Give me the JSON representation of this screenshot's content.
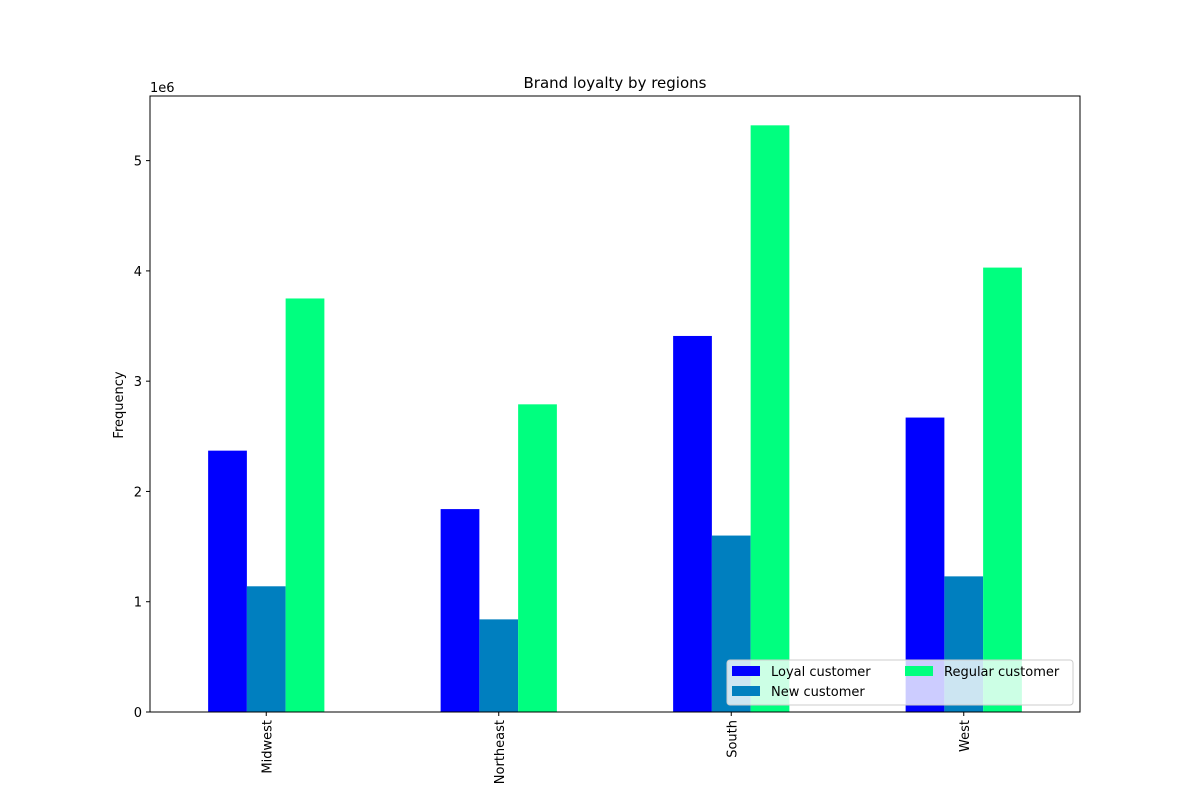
{
  "chart_data": {
    "type": "bar",
    "title": "Brand loyalty by regions",
    "xlabel": "",
    "ylabel": "Frequency",
    "y_offset_label": "1e6",
    "categories": [
      "Midwest",
      "Northeast",
      "South",
      "West"
    ],
    "series": [
      {
        "name": "Loyal customer",
        "color": "#0000ff",
        "values": [
          2370000,
          1840000,
          3410000,
          2670000
        ]
      },
      {
        "name": "New customer",
        "color": "#007fbf",
        "values": [
          1140000,
          840000,
          1600000,
          1230000
        ]
      },
      {
        "name": "Regular customer",
        "color": "#00ff7f",
        "values": [
          3750000,
          2790000,
          5320000,
          4030000
        ]
      }
    ],
    "ylim": [
      0,
      5586000
    ],
    "yticks": [
      {
        "value": 0,
        "label": "0"
      },
      {
        "value": 1000000,
        "label": "1"
      },
      {
        "value": 2000000,
        "label": "2"
      },
      {
        "value": 3000000,
        "label": "3"
      },
      {
        "value": 4000000,
        "label": "4"
      },
      {
        "value": 5000000,
        "label": "5"
      }
    ],
    "grid": false,
    "legend_position": "lower right",
    "legend_columns": 2
  }
}
